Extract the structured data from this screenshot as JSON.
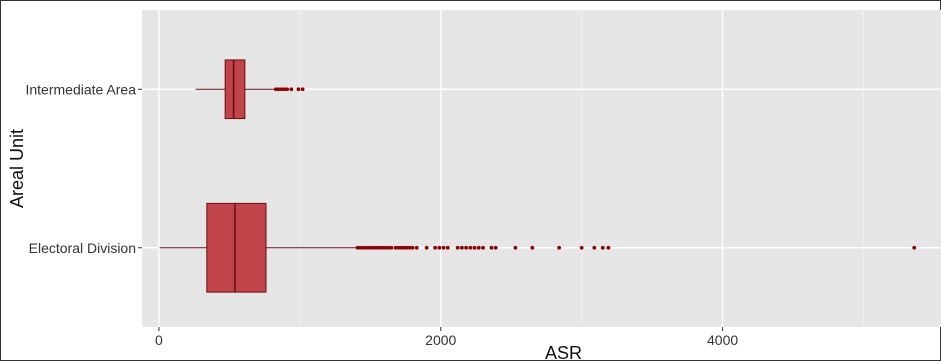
{
  "chart_data": {
    "type": "boxplot",
    "orientation": "horizontal",
    "title": "",
    "xlabel": "ASR",
    "ylabel": "Areal Unit",
    "xlim": [
      -120,
      5550
    ],
    "x_ticks": [
      0,
      2000,
      4000
    ],
    "grid": true,
    "colors": {
      "panel": "#e6e6e6",
      "grid_major": "#ffffff",
      "grid_minor": "#f1f1f1",
      "box_fill": "#c0444a",
      "box_stroke": "#6b0f14",
      "outlier": "#8b0000"
    },
    "categories": [
      "Intermediate Area",
      "Electoral Division"
    ],
    "series": [
      {
        "category": "Intermediate Area",
        "whisker_low": 260,
        "q1": 470,
        "median": 530,
        "q3": 610,
        "whisker_high": 820,
        "outliers": [
          830,
          850,
          870,
          890,
          910,
          940,
          990,
          1020
        ]
      },
      {
        "category": "Electoral Division",
        "whisker_low": 5,
        "q1": 340,
        "median": 540,
        "q3": 760,
        "whisker_high": 1400,
        "outliers": [
          1410,
          1430,
          1450,
          1470,
          1490,
          1510,
          1530,
          1550,
          1570,
          1590,
          1610,
          1630,
          1650,
          1680,
          1700,
          1720,
          1740,
          1760,
          1780,
          1800,
          1830,
          1900,
          1960,
          1990,
          2020,
          2050,
          2120,
          2150,
          2180,
          2210,
          2240,
          2270,
          2300,
          2360,
          2390,
          2530,
          2650,
          2840,
          3000,
          3090,
          3150,
          3190,
          5360
        ]
      }
    ]
  }
}
